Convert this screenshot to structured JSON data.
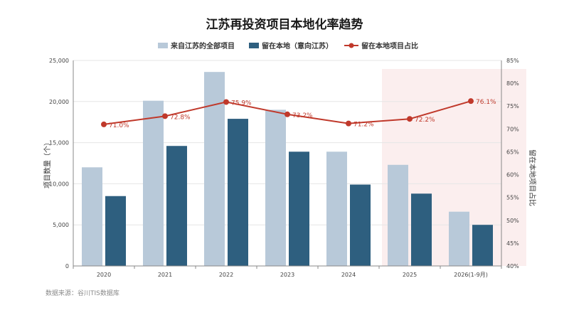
{
  "chart_data": {
    "type": "bar",
    "title": "江苏再投资项目本地化率趋势",
    "categories": [
      "2020",
      "2021",
      "2022",
      "2023",
      "2024",
      "2025",
      "2026(1-9月)"
    ],
    "series": [
      {
        "name": "来自江苏的全部项目",
        "type": "bar",
        "axis": "left",
        "color": "#b8c9d9",
        "values": [
          12000,
          20100,
          23600,
          19000,
          13900,
          12300,
          6600
        ]
      },
      {
        "name": "留在本地（意向江苏）",
        "type": "bar",
        "axis": "left",
        "color": "#2e5f7f",
        "values": [
          8500,
          14600,
          17900,
          13900,
          9900,
          8800,
          5000
        ]
      },
      {
        "name": "留在本地项目占比",
        "type": "line",
        "axis": "right",
        "color": "#c0392b",
        "values": [
          71.0,
          72.8,
          75.9,
          73.2,
          71.2,
          72.2,
          76.1
        ],
        "labels": [
          "71.0%",
          "72.8%",
          "75.9%",
          "73.2%",
          "71.2%",
          "72.2%",
          "76.1%"
        ]
      }
    ],
    "ylabel": "项目数量（个）",
    "ylabel_right": "留在本地项目占比",
    "ylim": [
      0,
      25000
    ],
    "yticks": [
      "0",
      "5,000",
      "10,000",
      "15,000",
      "20,000",
      "25,000"
    ],
    "ylim_right": [
      40,
      85
    ],
    "yticks_right": [
      "40%",
      "45%",
      "50%",
      "55%",
      "60%",
      "65%",
      "70%",
      "75%",
      "80%",
      "85%"
    ],
    "grid": true,
    "legend": "top-center",
    "highlight_categories": [
      "2025",
      "2026(1-9月)"
    ],
    "highlight_color": "#fbeeee"
  },
  "source": "数据来源：谷川TIS数据库"
}
